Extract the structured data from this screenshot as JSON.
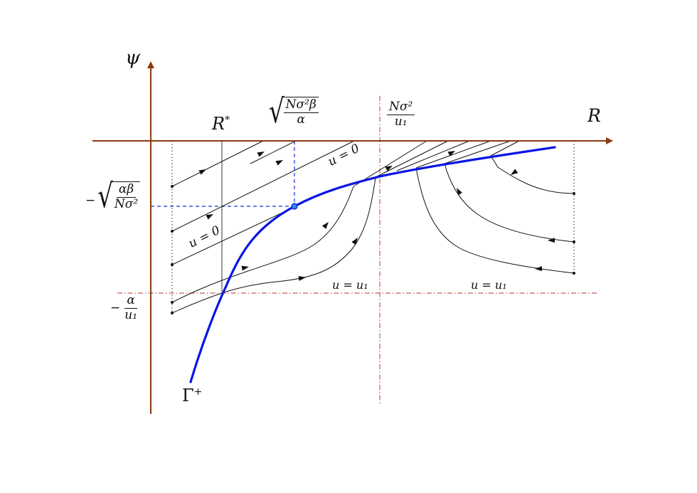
{
  "axes": {
    "y_label": "ψ",
    "x_label": "R",
    "color": "#8B3A0F"
  },
  "ticks": {
    "r_star": {
      "symbol": "R",
      "sup": "*"
    },
    "sqrt_x": {
      "num": "Nσ²β",
      "den": "α"
    },
    "frac_x": {
      "num": "Nσ²",
      "den": "u₁"
    },
    "sqrt_y": {
      "sign": "−",
      "num": "αβ",
      "den": "Nσ²"
    },
    "frac_y": {
      "sign": "−",
      "num": "α",
      "den": "u₁"
    }
  },
  "labels": {
    "u0_upper": "u = 0",
    "u0_lower": "u = 0",
    "u1_left": "u = u₁",
    "u1_right": "u = u₁",
    "gamma": {
      "symbol": "Γ",
      "sup": "+"
    }
  },
  "colors": {
    "curve": "#0A14E6",
    "dashed": "#1A2BD8",
    "dashdot": "#B03A2E",
    "trajectory": "#111111",
    "point": "#2E8BE0"
  }
}
